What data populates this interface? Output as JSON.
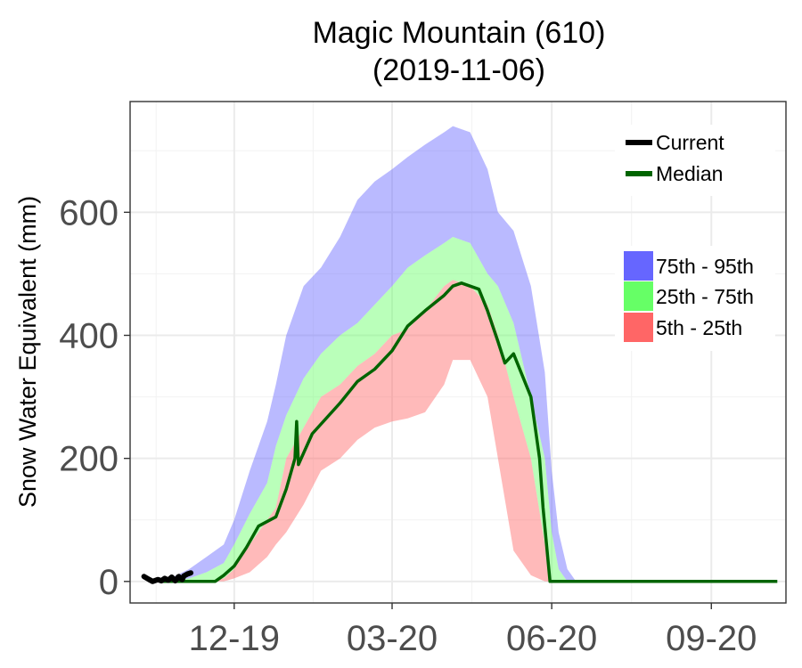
{
  "chart_data": {
    "type": "area",
    "title": "Magic Mountain (610)",
    "subtitle": "(2019-11-06)",
    "xlabel": "",
    "ylabel": "Snow Water Equivalent (mm)",
    "x_range": [
      "2019-10-02",
      "2020-10-14"
    ],
    "ylim": [
      -35,
      780
    ],
    "x_ticks": [
      {
        "date": "2019-12-01",
        "label": "12-19"
      },
      {
        "date": "2020-03-01",
        "label": "03-20"
      },
      {
        "date": "2020-06-01",
        "label": "06-20"
      },
      {
        "date": "2020-09-01",
        "label": "09-20"
      }
    ],
    "y_ticks": [
      0,
      200,
      400,
      600
    ],
    "grid": true,
    "legend_placement": "top-right",
    "colors": {
      "current": "#000000",
      "median": "#006400",
      "band_75_95": "#6666ff",
      "band_25_75": "#66ff66",
      "band_5_25": "#ff6666",
      "panel_border": "#333333",
      "grid": "#ebebeb"
    },
    "legend_lines": [
      {
        "label": "Current",
        "color": "#000000"
      },
      {
        "label": "Median",
        "color": "#006400"
      }
    ],
    "legend_bands": [
      {
        "label": "75th - 95th",
        "color": "#6666ff"
      },
      {
        "label": "25th - 75th",
        "color": "#66ff66"
      },
      {
        "label": "5th - 25th",
        "color": "#ff6666"
      }
    ],
    "percentile_dates": [
      "2019-10-15",
      "2019-10-25",
      "2019-11-05",
      "2019-11-15",
      "2019-11-25",
      "2019-12-01",
      "2019-12-10",
      "2019-12-20",
      "2019-12-25",
      "2019-12-31",
      "2020-01-10",
      "2020-01-20",
      "2020-01-31",
      "2020-02-10",
      "2020-02-20",
      "2020-03-01",
      "2020-03-10",
      "2020-03-20",
      "2020-03-31",
      "2020-04-05",
      "2020-04-15",
      "2020-04-25",
      "2020-05-01",
      "2020-05-10",
      "2020-05-20",
      "2020-05-28",
      "2020-06-01",
      "2020-06-05",
      "2020-06-10",
      "2020-06-15",
      "2020-06-20",
      "2020-07-01",
      "2020-08-01",
      "2020-09-01",
      "2020-10-01"
    ],
    "p5": [
      0,
      0,
      0,
      0,
      0,
      5,
      15,
      40,
      60,
      80,
      125,
      180,
      200,
      230,
      250,
      260,
      265,
      275,
      320,
      360,
      360,
      300,
      200,
      50,
      10,
      0,
      0,
      0,
      0,
      0,
      0,
      0,
      0,
      0,
      0
    ],
    "p25": [
      0,
      0,
      0,
      0,
      5,
      20,
      60,
      100,
      120,
      200,
      250,
      300,
      320,
      350,
      370,
      400,
      410,
      440,
      480,
      490,
      480,
      450,
      400,
      300,
      200,
      60,
      0,
      0,
      0,
      0,
      0,
      0,
      0,
      0,
      0
    ],
    "p75": [
      0,
      0,
      5,
      15,
      30,
      60,
      110,
      160,
      220,
      270,
      330,
      370,
      400,
      420,
      450,
      480,
      510,
      530,
      550,
      560,
      550,
      500,
      480,
      420,
      300,
      200,
      80,
      20,
      0,
      0,
      0,
      0,
      0,
      0,
      0
    ],
    "p95": [
      0,
      5,
      20,
      40,
      60,
      100,
      180,
      260,
      320,
      400,
      480,
      510,
      560,
      620,
      650,
      670,
      690,
      710,
      730,
      740,
      730,
      670,
      600,
      570,
      480,
      340,
      180,
      80,
      20,
      0,
      0,
      0,
      0,
      0,
      0
    ],
    "median": {
      "dates": [
        "2019-10-20",
        "2019-11-01",
        "2019-11-15",
        "2019-11-20",
        "2019-11-25",
        "2019-12-01",
        "2019-12-08",
        "2019-12-15",
        "2019-12-25",
        "2019-12-31",
        "2020-01-05",
        "2020-01-06",
        "2020-01-07",
        "2020-01-15",
        "2020-01-31",
        "2020-02-10",
        "2020-02-20",
        "2020-03-01",
        "2020-03-10",
        "2020-03-20",
        "2020-03-31",
        "2020-04-05",
        "2020-04-10",
        "2020-04-20",
        "2020-04-25",
        "2020-05-01",
        "2020-05-05",
        "2020-05-10",
        "2020-05-20",
        "2020-05-25",
        "2020-05-27",
        "2020-05-31",
        "2020-06-10",
        "2020-07-01",
        "2020-08-01",
        "2020-09-01",
        "2020-10-09"
      ],
      "values": [
        0,
        0,
        0,
        0,
        10,
        25,
        55,
        90,
        105,
        150,
        200,
        260,
        190,
        240,
        290,
        325,
        345,
        375,
        415,
        440,
        465,
        480,
        485,
        475,
        440,
        390,
        355,
        370,
        300,
        200,
        120,
        0,
        0,
        0,
        0,
        0,
        0
      ]
    },
    "current": {
      "dates": [
        "2019-10-10",
        "2019-10-13",
        "2019-10-15",
        "2019-10-18",
        "2019-10-20",
        "2019-10-22",
        "2019-10-24",
        "2019-10-26",
        "2019-10-28",
        "2019-10-30",
        "2019-11-01",
        "2019-11-02",
        "2019-11-04",
        "2019-11-06"
      ],
      "values": [
        8,
        3,
        0,
        3,
        1,
        5,
        2,
        7,
        1,
        8,
        3,
        9,
        12,
        14
      ]
    }
  }
}
